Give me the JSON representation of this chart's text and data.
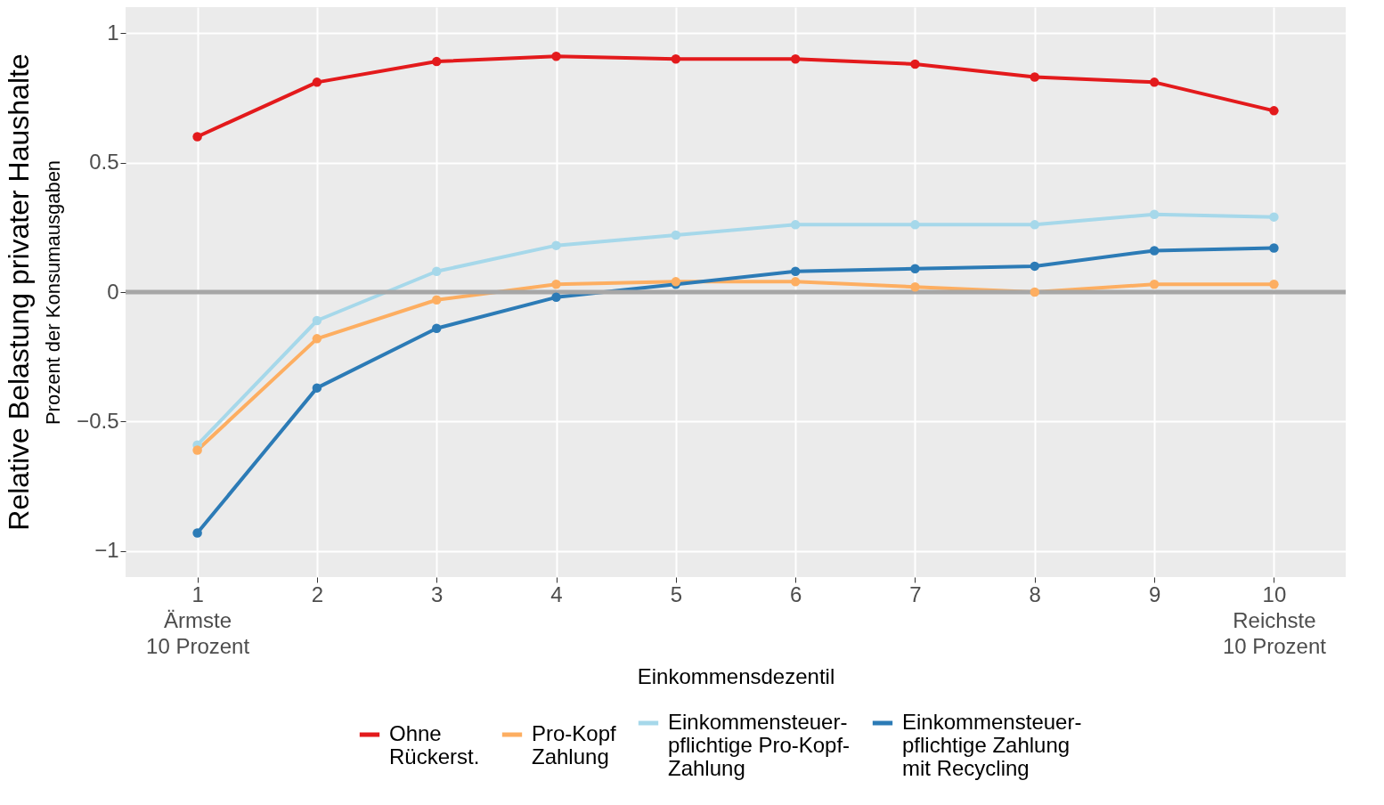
{
  "chart_data": {
    "type": "line",
    "title": "Relative Belastung privater Haushalte",
    "xlabel": "Einkommensdezentil",
    "ylabel": "Prozent der Konsumausgaben",
    "x": [
      1,
      2,
      3,
      4,
      5,
      6,
      7,
      8,
      9,
      10
    ],
    "xlim": [
      0.4,
      10.6
    ],
    "xticks": [
      {
        "value": 1,
        "label": "1\nÄrmste\n10 Prozent"
      },
      2,
      3,
      4,
      5,
      6,
      7,
      8,
      9,
      {
        "value": 10,
        "label": "10\nReichste\n10 Prozent"
      }
    ],
    "ylim": [
      -1.1,
      1.1
    ],
    "yticks": [
      -1,
      -0.5,
      0,
      0.5,
      1
    ],
    "series": [
      {
        "name": "Ohne\nRückerst.",
        "color": "#e31a1c",
        "values": [
          0.6,
          0.81,
          0.89,
          0.91,
          0.9,
          0.9,
          0.88,
          0.83,
          0.81,
          0.7
        ]
      },
      {
        "name": "Pro-Kopf\nZahlung",
        "color": "#fdae61",
        "values": [
          -0.61,
          -0.18,
          -0.03,
          0.03,
          0.04,
          0.04,
          0.02,
          0.0,
          0.03,
          0.03
        ]
      },
      {
        "name": "Einkommensteuer-\npflichtige Pro-Kopf-\nZahlung",
        "color": "#a6d8ea",
        "values": [
          -0.59,
          -0.11,
          0.08,
          0.18,
          0.22,
          0.26,
          0.26,
          0.26,
          0.3,
          0.29
        ]
      },
      {
        "name": "Einkommensteuer-\npflichtige Zahlung\nmit Recycling",
        "color": "#2c7bb6",
        "values": [
          -0.93,
          -0.37,
          -0.14,
          -0.02,
          0.03,
          0.08,
          0.09,
          0.1,
          0.16,
          0.17
        ]
      }
    ],
    "ref_lines": [
      {
        "axis": "y",
        "value": 0,
        "color": "#a6a6a6"
      }
    ],
    "grid": true,
    "legend": "bottom",
    "marker": "circle",
    "line_style": "solid"
  }
}
